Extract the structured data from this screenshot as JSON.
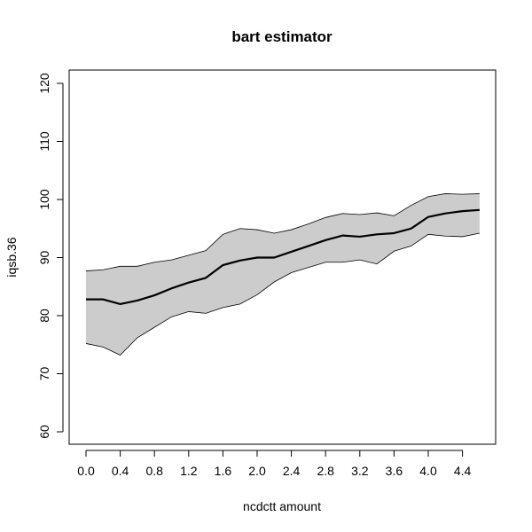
{
  "chart_data": {
    "type": "line",
    "title": "bart estimator",
    "xlabel": "ncdctt amount",
    "ylabel": "iqsb.36",
    "xlim": [
      0.0,
      4.6
    ],
    "ylim": [
      60,
      120
    ],
    "x_ticks": [
      "0.0",
      "0.4",
      "0.8",
      "1.2",
      "1.6",
      "2.0",
      "2.4",
      "2.8",
      "3.2",
      "3.6",
      "4.0",
      "4.4"
    ],
    "y_ticks": [
      "60",
      "70",
      "80",
      "90",
      "100",
      "110",
      "120"
    ],
    "grid": false,
    "band_color": "#cccccc",
    "line_color": "#000000",
    "x": [
      0.0,
      0.2,
      0.4,
      0.6,
      0.8,
      1.0,
      1.2,
      1.4,
      1.6,
      1.8,
      2.0,
      2.2,
      2.4,
      2.6,
      2.8,
      3.0,
      3.2,
      3.4,
      3.6,
      3.8,
      4.0,
      4.2,
      4.4,
      4.6
    ],
    "estimate": [
      82.8,
      82.8,
      82.0,
      82.6,
      83.5,
      84.7,
      85.7,
      86.5,
      88.7,
      89.5,
      90.0,
      90.0,
      91.0,
      92.0,
      93.0,
      93.8,
      93.6,
      94.0,
      94.2,
      95.0,
      97.0,
      97.6,
      98.0,
      98.2
    ],
    "upper": [
      87.7,
      87.9,
      88.5,
      88.5,
      89.2,
      89.6,
      90.4,
      91.2,
      94.0,
      95.0,
      94.8,
      94.2,
      94.8,
      95.8,
      96.9,
      97.6,
      97.4,
      97.7,
      97.2,
      99.0,
      100.5,
      101.0,
      100.9,
      101.0
    ],
    "lower": [
      75.2,
      74.6,
      73.2,
      76.2,
      78.0,
      79.8,
      80.7,
      80.4,
      81.4,
      82.0,
      83.6,
      85.8,
      87.4,
      88.3,
      89.2,
      89.2,
      89.6,
      88.9,
      91.1,
      92.0,
      94.0,
      93.7,
      93.6,
      94.2
    ]
  }
}
